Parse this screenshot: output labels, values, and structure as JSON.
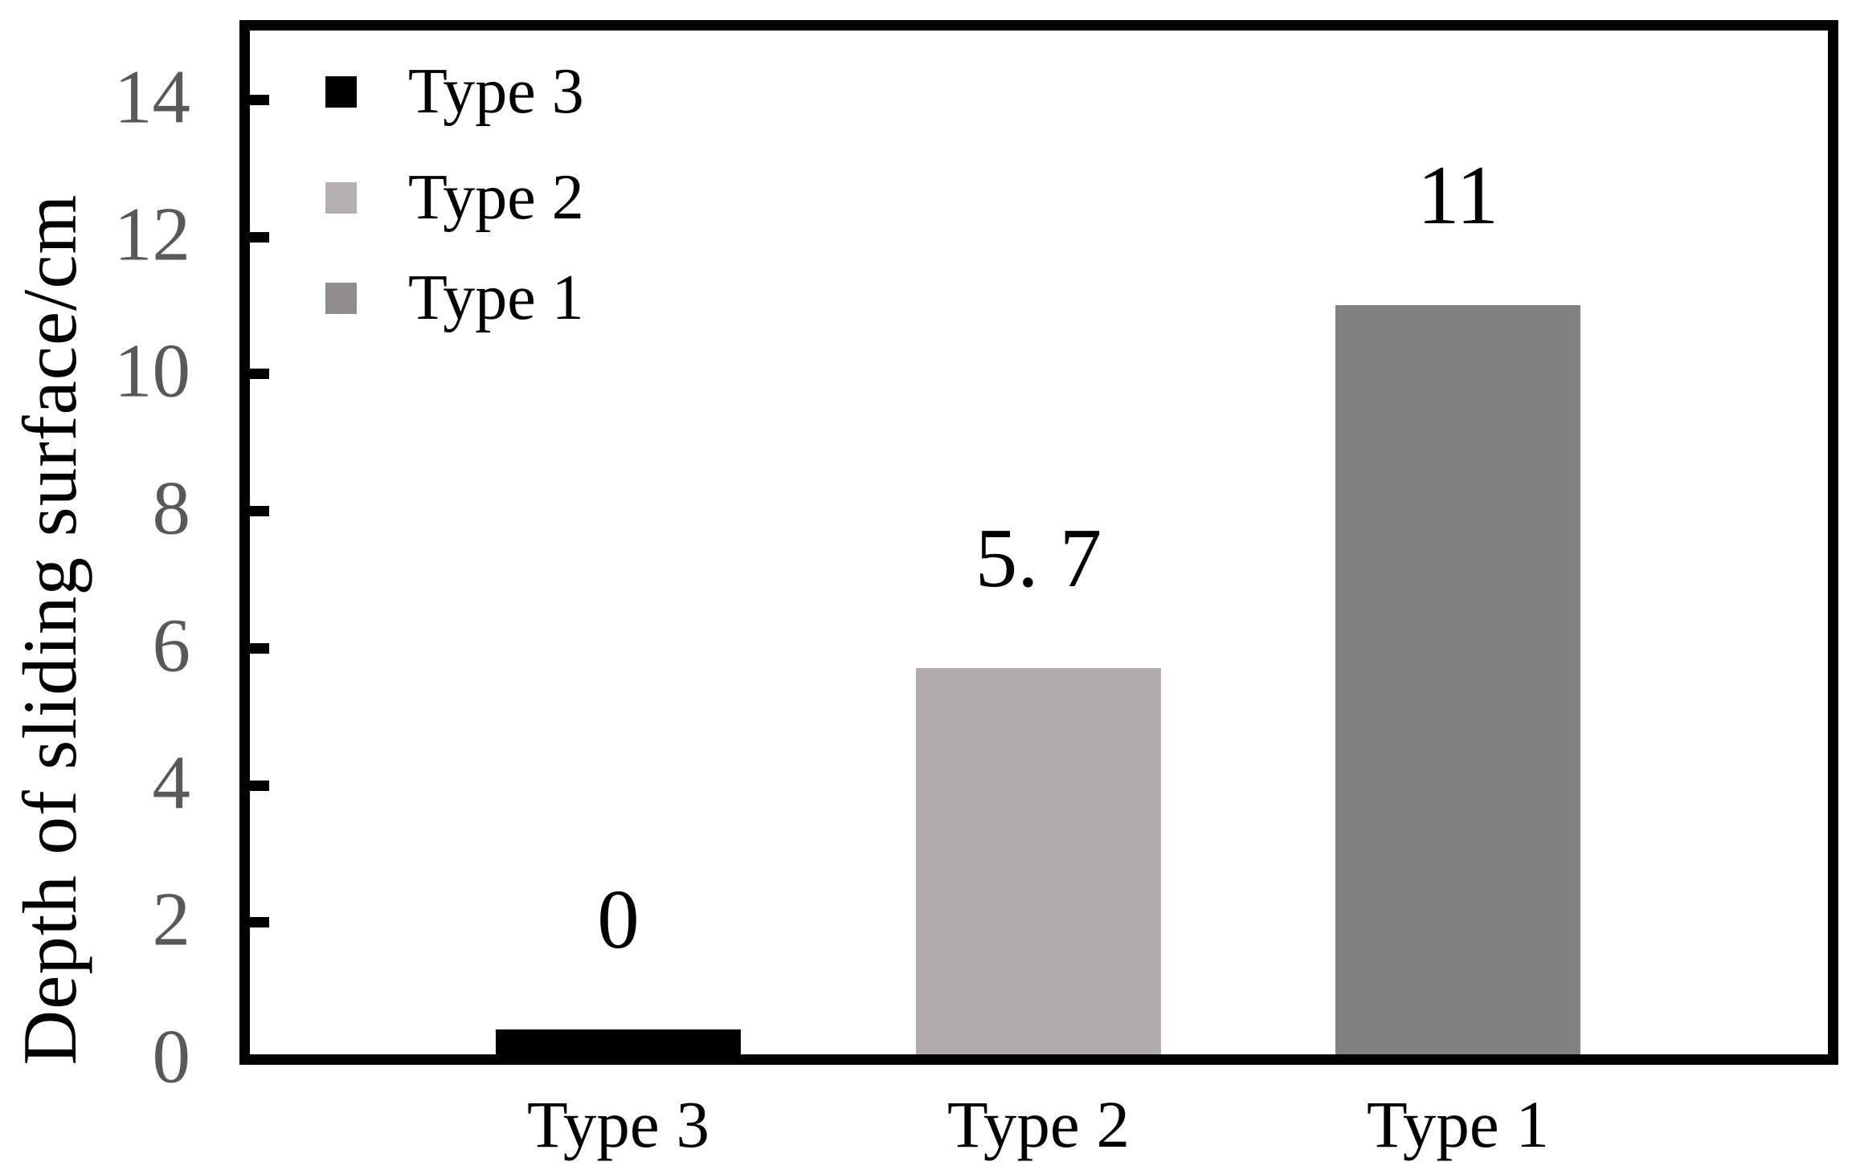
{
  "chart_data": {
    "type": "bar",
    "title": "",
    "xlabel": "",
    "ylabel": "Depth of sliding surface/cm",
    "categories": [
      "Type 3",
      "Type 2",
      "Type 1"
    ],
    "values": [
      0,
      5.7,
      11
    ],
    "value_labels": [
      "0",
      "5. 7",
      "11"
    ],
    "drawn_bar_heights_units": [
      0.43,
      5.7,
      11
    ],
    "bar_colors": [
      "#000000",
      "#b1acab",
      "#828282"
    ],
    "ylim": [
      0,
      14
    ],
    "yticks": [
      0,
      2,
      4,
      6,
      8,
      10,
      12,
      14
    ],
    "ytick_labels": [
      "0",
      "2",
      "4",
      "6",
      "8",
      "10",
      "12",
      "14"
    ],
    "grid": false,
    "legend": {
      "position": "upper-left-inside",
      "entries": [
        {
          "label": "Type 3",
          "color": "#000000"
        },
        {
          "label": "Type 2",
          "color": "#b5b0af"
        },
        {
          "label": "Type 1",
          "color": "#908c8c"
        }
      ]
    },
    "styles": {
      "tick_label_color": "#595959",
      "axis_color": "#000000",
      "text_color": "#000000",
      "background": "#ffffff"
    }
  }
}
